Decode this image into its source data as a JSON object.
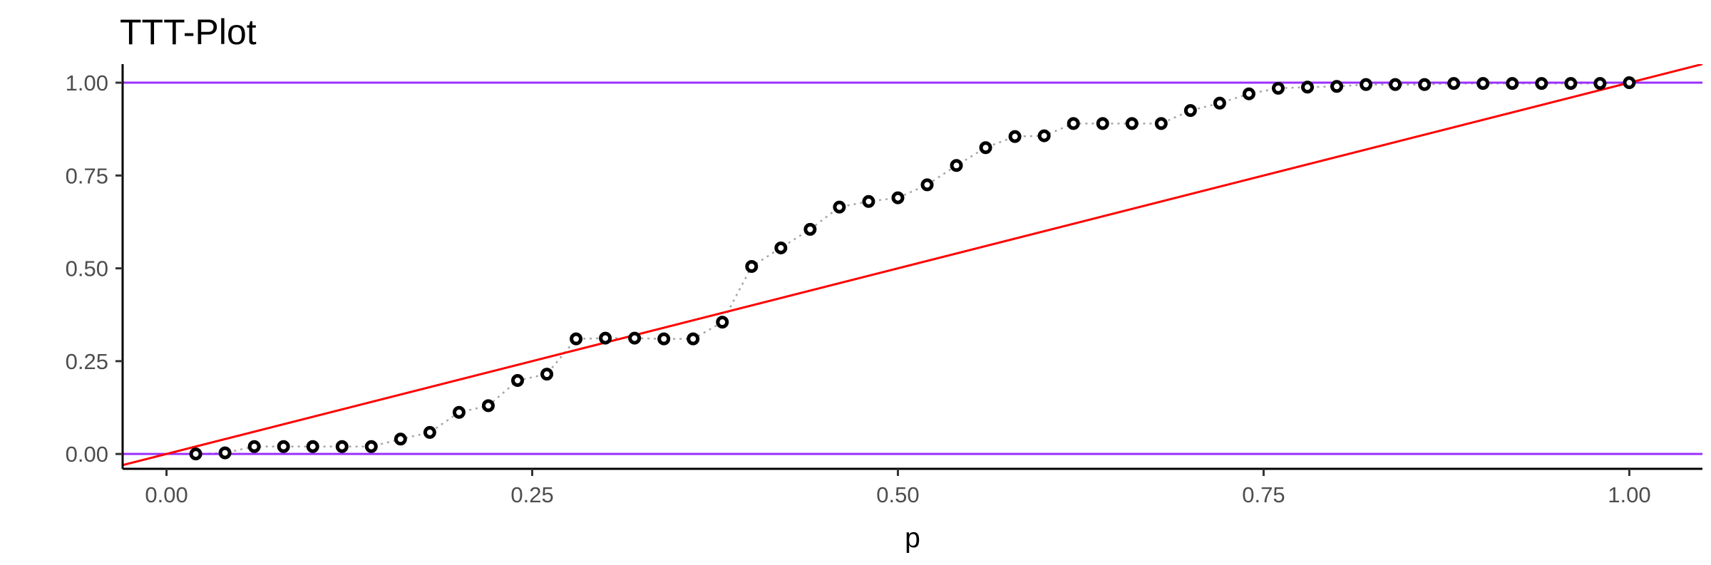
{
  "chart_data": {
    "type": "scatter",
    "title": "TTT-Plot",
    "xlabel": "p",
    "ylabel": "",
    "xlim": [
      -0.03,
      1.05
    ],
    "ylim": [
      -0.04,
      1.05
    ],
    "x_ticks": [
      0.0,
      0.25,
      0.5,
      0.75,
      1.0
    ],
    "x_tick_labels": [
      "0.00",
      "0.25",
      "0.50",
      "0.75",
      "1.00"
    ],
    "y_ticks": [
      0.0,
      0.25,
      0.5,
      0.75,
      1.0
    ],
    "y_tick_labels": [
      "0.00",
      "0.25",
      "0.50",
      "0.75",
      "1.00"
    ],
    "grid": false,
    "legend": "none",
    "colors": {
      "points": "#000000",
      "connector": "#a6a6a6",
      "diagonal": "#ff0000",
      "reference_lines": "#9b30ff"
    },
    "reference_lines": {
      "horizontal": [
        0.0,
        1.0
      ],
      "diagonal": {
        "slope": 1,
        "intercept": 0
      }
    },
    "series": [
      {
        "points": [
          [
            0.02,
            0.0
          ],
          [
            0.04,
            0.003
          ],
          [
            0.06,
            0.02
          ],
          [
            0.08,
            0.02
          ],
          [
            0.1,
            0.02
          ],
          [
            0.12,
            0.02
          ],
          [
            0.14,
            0.02
          ],
          [
            0.16,
            0.04
          ],
          [
            0.18,
            0.058
          ],
          [
            0.2,
            0.112
          ],
          [
            0.22,
            0.13
          ],
          [
            0.24,
            0.198
          ],
          [
            0.26,
            0.215
          ],
          [
            0.28,
            0.31
          ],
          [
            0.3,
            0.312
          ],
          [
            0.32,
            0.312
          ],
          [
            0.34,
            0.31
          ],
          [
            0.36,
            0.31
          ],
          [
            0.38,
            0.355
          ],
          [
            0.4,
            0.505
          ],
          [
            0.42,
            0.555
          ],
          [
            0.44,
            0.605
          ],
          [
            0.46,
            0.665
          ],
          [
            0.48,
            0.68
          ],
          [
            0.5,
            0.69
          ],
          [
            0.52,
            0.725
          ],
          [
            0.54,
            0.777
          ],
          [
            0.56,
            0.825
          ],
          [
            0.58,
            0.855
          ],
          [
            0.6,
            0.857
          ],
          [
            0.62,
            0.89
          ],
          [
            0.64,
            0.89
          ],
          [
            0.66,
            0.89
          ],
          [
            0.68,
            0.89
          ],
          [
            0.7,
            0.925
          ],
          [
            0.72,
            0.945
          ],
          [
            0.74,
            0.97
          ],
          [
            0.76,
            0.985
          ],
          [
            0.78,
            0.988
          ],
          [
            0.8,
            0.99
          ],
          [
            0.82,
            0.995
          ],
          [
            0.84,
            0.995
          ],
          [
            0.86,
            0.995
          ],
          [
            0.88,
            0.998
          ],
          [
            0.9,
            0.998
          ],
          [
            0.92,
            0.998
          ],
          [
            0.94,
            0.998
          ],
          [
            0.96,
            0.998
          ],
          [
            0.98,
            0.998
          ],
          [
            1.0,
            1.0
          ]
        ]
      }
    ]
  }
}
